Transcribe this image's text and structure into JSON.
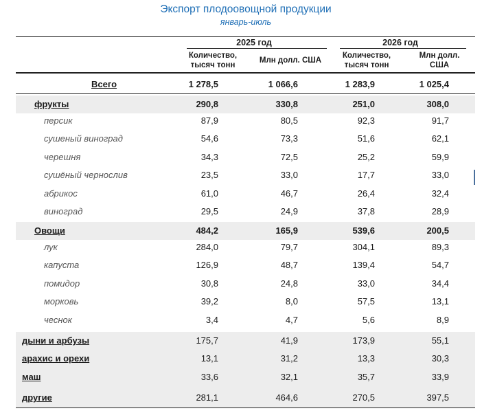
{
  "title": "Экспорт плодоовощной продукции",
  "subtitle": "январь-июль",
  "header": {
    "year_2025": "2025 год",
    "year_2026": "2026 год",
    "col_qty_2025": "Количество,\nтысяч тонн",
    "col_usd_2025": "Млн долл. США",
    "col_qty_2026": "Количество,\nтысяч тонн",
    "col_usd_2026": "Млн долл.\nСША"
  },
  "rows": [
    {
      "label": "Всего",
      "type": "total",
      "values": [
        "1 278,5",
        "1 066,6",
        "1 283,9",
        "1 025,4"
      ]
    },
    {
      "label": "фрукты",
      "type": "cat",
      "values": [
        "290,8",
        "330,8",
        "251,0",
        "308,0"
      ]
    },
    {
      "label": "персик",
      "type": "sub",
      "values": [
        "87,9",
        "80,5",
        "92,3",
        "91,7"
      ]
    },
    {
      "label": "сушеный виноград",
      "type": "sub",
      "values": [
        "54,6",
        "73,3",
        "51,6",
        "62,1"
      ]
    },
    {
      "label": "черешня",
      "type": "sub",
      "values": [
        "34,3",
        "72,5",
        "25,2",
        "59,9"
      ]
    },
    {
      "label": "сушёный чернослив",
      "type": "sub",
      "values": [
        "23,5",
        "33,0",
        "17,7",
        "33,0"
      ]
    },
    {
      "label": "абрикос",
      "type": "sub",
      "values": [
        "61,0",
        "46,7",
        "26,4",
        "32,4"
      ]
    },
    {
      "label": "виноград",
      "type": "sub",
      "values": [
        "29,5",
        "24,9",
        "37,8",
        "28,9"
      ]
    },
    {
      "label": "Овощи",
      "type": "cat",
      "values": [
        "484,2",
        "165,9",
        "539,6",
        "200,5"
      ]
    },
    {
      "label": "лук",
      "type": "sub",
      "values": [
        "284,0",
        "79,7",
        "304,1",
        "89,3"
      ]
    },
    {
      "label": "капуста",
      "type": "sub",
      "values": [
        "126,9",
        "48,7",
        "139,4",
        "54,7"
      ]
    },
    {
      "label": "помидор",
      "type": "sub",
      "values": [
        "30,8",
        "24,8",
        "33,0",
        "34,4"
      ]
    },
    {
      "label": "морковь",
      "type": "sub",
      "values": [
        "39,2",
        "8,0",
        "57,5",
        "13,1"
      ]
    },
    {
      "label": "чеснок",
      "type": "sub",
      "values": [
        "3,4",
        "4,7",
        "5,6",
        "8,9"
      ]
    },
    {
      "label": "дыни и арбузы",
      "type": "plain",
      "values": [
        "175,7",
        "41,9",
        "173,9",
        "55,1"
      ]
    },
    {
      "label": "арахис и орехи",
      "type": "plain",
      "values": [
        "13,1",
        "31,2",
        "13,3",
        "30,3"
      ]
    },
    {
      "label": "маш",
      "type": "plain",
      "values": [
        "33,6",
        "32,1",
        "35,7",
        "33,9"
      ]
    },
    {
      "label": "другие",
      "type": "plain",
      "values": [
        "281,1",
        "464,6",
        "270,5",
        "397,5"
      ]
    }
  ]
}
